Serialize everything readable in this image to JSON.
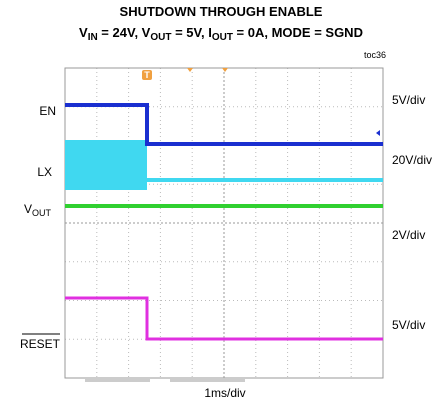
{
  "title": "SHUTDOWN THROUGH ENABLE",
  "subtitle": [
    "V",
    "IN",
    " = 24V, V",
    "OUT",
    " = 5V, I",
    "OUT",
    " = 0A, MODE = SGND"
  ],
  "figure_id": "toc36",
  "trigger_marker": "T",
  "channels": [
    {
      "label": "EN",
      "scale": "5V/div"
    },
    {
      "label": "LX",
      "scale": "20V/div"
    },
    {
      "label": [
        "V",
        "OUT"
      ],
      "scale": "2V/div"
    },
    {
      "label": "RESET",
      "scale": "5V/div"
    }
  ],
  "time_scale": "1ms/div"
}
